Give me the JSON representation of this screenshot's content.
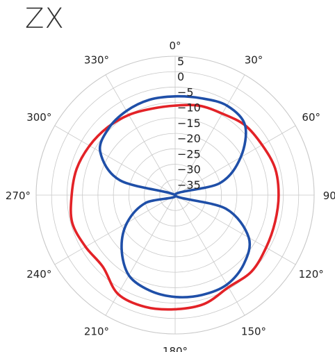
{
  "chart_data": {
    "type": "polar-line",
    "title": "ZX",
    "angle_unit": "degrees",
    "angle_zero": "top",
    "angle_direction": "clockwise",
    "angle_ticks": [
      0,
      30,
      60,
      90,
      120,
      150,
      180,
      210,
      240,
      270,
      300,
      330
    ],
    "angle_tick_labels": [
      "0°",
      "30°",
      "60°",
      "90°",
      "120°",
      "150°",
      "180°",
      "210°",
      "240°",
      "270°",
      "300°",
      "330°"
    ],
    "rlim": [
      -40,
      5
    ],
    "r_ticks": [
      5,
      0,
      -5,
      -10,
      -15,
      -20,
      -25,
      -30,
      -35
    ],
    "r_tick_labels": [
      "5",
      "0",
      "−5",
      "−10",
      "−15",
      "−20",
      "−25",
      "−30",
      "−35"
    ],
    "r_label_angle": 0,
    "grid": true,
    "series": [
      {
        "color": "#e32227",
        "theta": [
          0,
          15,
          30,
          45,
          60,
          75,
          90,
          105,
          120,
          135,
          150,
          165,
          180,
          195,
          210,
          225,
          240,
          255,
          270,
          285,
          300,
          315,
          330,
          345,
          360
        ],
        "r": [
          -11,
          -10,
          -9.5,
          -8,
          -7.5,
          -6.5,
          -6.5,
          -6.5,
          -6,
          -5,
          -5.5,
          -3.5,
          -3,
          -2.5,
          -3,
          -7,
          -6.5,
          -5.5,
          -6.5,
          -7,
          -8,
          -9,
          -10,
          -11,
          -11
        ]
      },
      {
        "color": "#1f4fa8",
        "theta": [
          0,
          15,
          30,
          45,
          60,
          75,
          90,
          105,
          120,
          135,
          150,
          165,
          180,
          195,
          210,
          225,
          240,
          255,
          270,
          285,
          300,
          315,
          330,
          345,
          360
        ],
        "r": [
          -8,
          -7.5,
          -6.5,
          -8,
          -15.5,
          -25,
          -40,
          -23,
          -12.5,
          -8.5,
          -6.5,
          -6.5,
          -7,
          -8,
          -10,
          -15.5,
          -22,
          -30,
          -40,
          -21.5,
          -12,
          -9.5,
          -8.5,
          -8,
          -8
        ]
      }
    ]
  }
}
